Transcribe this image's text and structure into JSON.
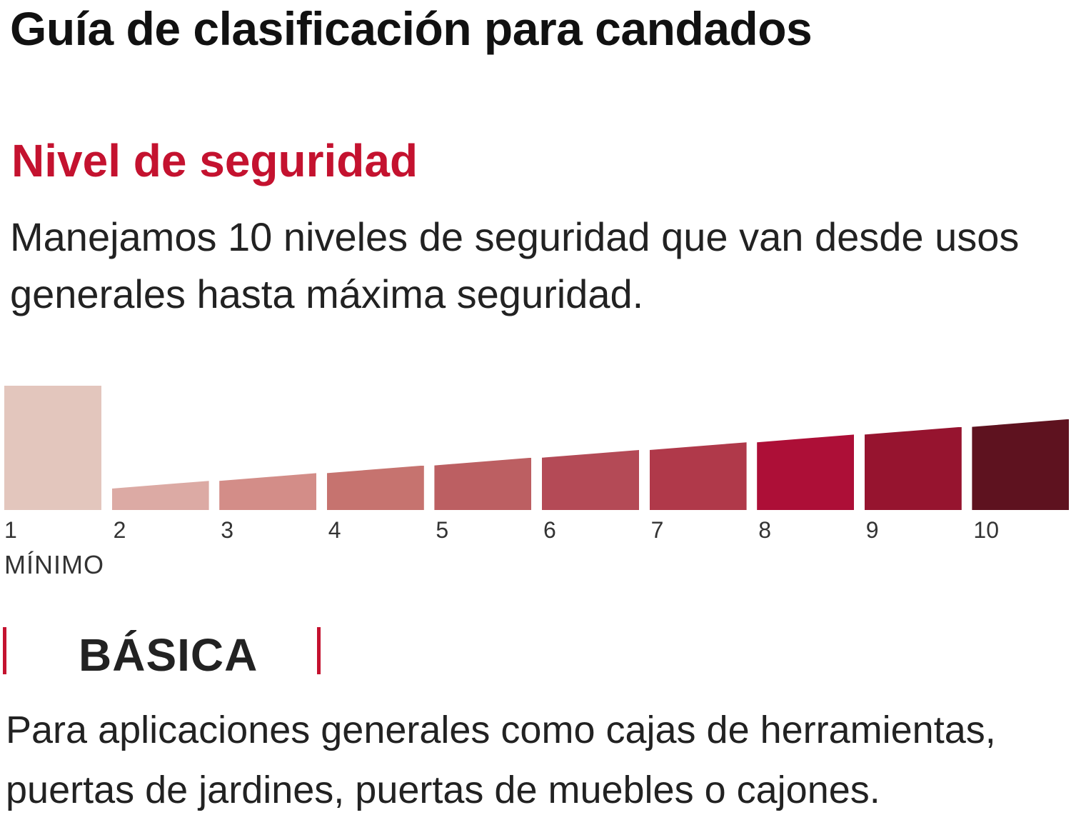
{
  "title": "Guía de clasificación para candados",
  "subtitle": "Nivel de seguridad",
  "intro": "Manejamos 10 niveles de seguridad que van desde usos generales hasta máxima seguridad.",
  "scale": {
    "levels": [
      "1",
      "2",
      "3",
      "4",
      "5",
      "6",
      "7",
      "8",
      "9",
      "10"
    ],
    "active_level": 1,
    "min_label": "MÍNIMO",
    "colors": [
      "#e3c6bd",
      "#dcaaa4",
      "#d38d88",
      "#c6736f",
      "#bc5f62",
      "#b44a56",
      "#b0394a",
      "#ad0f37",
      "#96142f",
      "#5e121f"
    ]
  },
  "accent_color": "#c4122f",
  "level_name": "BÁSICA",
  "description": "Para aplicaciones generales como cajas de herramientas, puertas de jardines, puertas de muebles o cajones."
}
